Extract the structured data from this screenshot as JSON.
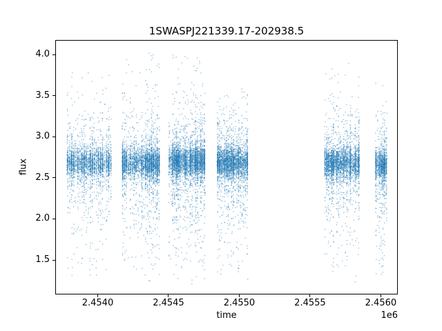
{
  "figure": {
    "title": "1SWASPJ221339.17-202938.5",
    "xlabel": "time",
    "ylabel": "flux",
    "offset_text": "1e6"
  },
  "chart_data": {
    "type": "scatter",
    "title": "1SWASPJ221339.17-202938.5",
    "xlabel": "time",
    "ylabel": "flux",
    "x_offset_label": "1e6",
    "grid": false,
    "legend": null,
    "xlim": [
      2453700,
      2456120
    ],
    "ylim": [
      1.08,
      4.18
    ],
    "xticks": {
      "values": [
        2454000,
        2454500,
        2455000,
        2455500,
        2456000
      ],
      "labels": [
        "2.4540",
        "2.4545",
        "2.4550",
        "2.4555",
        "2.4560"
      ]
    },
    "yticks": {
      "values": [
        1.5,
        2.0,
        2.5,
        3.0,
        3.5,
        4.0
      ],
      "labels": [
        "1.5",
        "2.0",
        "2.5",
        "3.0",
        "3.5",
        "4.0"
      ]
    },
    "marker": {
      "color": "#1f77b4",
      "alpha": 0.45,
      "size": 1.4
    },
    "series_description": "Photometric light curve: dense flux core near 2.55-2.85 with vertical scatter tails, observed in six seasonal clusters of nightly stripes",
    "clusters": [
      {
        "x_start": 2453780,
        "x_end": 2454100,
        "n_points": 2600,
        "nights": 22,
        "flux_core": 2.68,
        "flux_min": 1.3,
        "flux_max": 3.85
      },
      {
        "x_start": 2454170,
        "x_end": 2454440,
        "n_points": 3200,
        "nights": 20,
        "flux_core": 2.68,
        "flux_min": 1.22,
        "flux_max": 4.05
      },
      {
        "x_start": 2454500,
        "x_end": 2454760,
        "n_points": 3800,
        "nights": 21,
        "flux_core": 2.7,
        "flux_min": 1.18,
        "flux_max": 4.0
      },
      {
        "x_start": 2454842,
        "x_end": 2455062,
        "n_points": 3000,
        "nights": 18,
        "flux_core": 2.68,
        "flux_min": 1.25,
        "flux_max": 3.6
      },
      {
        "x_start": 2455600,
        "x_end": 2455850,
        "n_points": 3000,
        "nights": 21,
        "flux_core": 2.68,
        "flux_min": 1.18,
        "flux_max": 3.9
      },
      {
        "x_start": 2455960,
        "x_end": 2456045,
        "n_points": 1200,
        "nights": 7,
        "flux_core": 2.66,
        "flux_min": 1.3,
        "flux_max": 3.8
      }
    ],
    "rng_seed": 42
  }
}
